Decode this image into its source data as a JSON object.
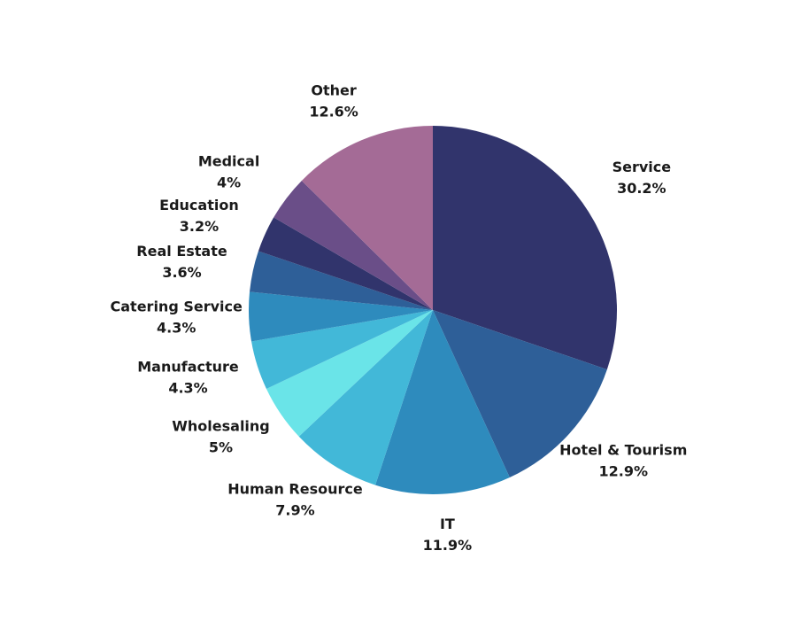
{
  "chart_data": {
    "type": "pie",
    "categories": [
      "Service",
      "Hotel & Tourism",
      "IT",
      "Human Resource",
      "Wholesaling",
      "Manufacture",
      "Catering Service",
      "Real Estate",
      "Education",
      "Medical",
      "Other"
    ],
    "values": [
      30.2,
      12.9,
      11.9,
      7.9,
      5,
      4.3,
      4.3,
      3.6,
      3.2,
      4,
      12.6
    ],
    "value_labels": [
      "30.2%",
      "12.9%",
      "11.9%",
      "7.9%",
      "5%",
      "4.3%",
      "4.3%",
      "3.6%",
      "3.2%",
      "4%",
      "12.6%"
    ],
    "colors": [
      "#31346c",
      "#2e5f98",
      "#2e8bbd",
      "#42b8d8",
      "#6ae4e8",
      "#42b8d8",
      "#2e8bbd",
      "#2e5f98",
      "#31346c",
      "#6a4e88",
      "#a46b96"
    ]
  }
}
